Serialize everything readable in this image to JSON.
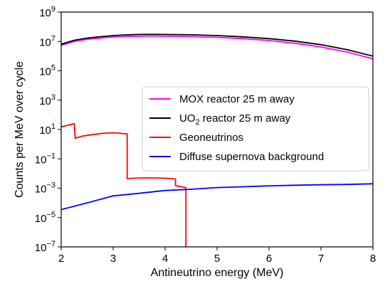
{
  "chart_data": {
    "type": "line",
    "title": "",
    "xlabel": "Antineutrino energy (MeV)",
    "ylabel": "Counts per MeV over cycle",
    "xlim": [
      2,
      8
    ],
    "ylim": [
      1e-07,
      1000000000.0
    ],
    "yscale": "log",
    "grid": false,
    "legend_position": "center-right",
    "x_ticks": [
      {
        "value": 2,
        "label": "2"
      },
      {
        "value": 3,
        "label": "3"
      },
      {
        "value": 4,
        "label": "4"
      },
      {
        "value": 5,
        "label": "5"
      },
      {
        "value": 6,
        "label": "6"
      },
      {
        "value": 7,
        "label": "7"
      },
      {
        "value": 8,
        "label": "8"
      }
    ],
    "y_ticks": [
      {
        "value": 1e-07,
        "base": "10",
        "exp": "−7"
      },
      {
        "value": 1e-05,
        "base": "10",
        "exp": "−5"
      },
      {
        "value": 0.001,
        "base": "10",
        "exp": "−3"
      },
      {
        "value": 0.1,
        "base": "10",
        "exp": "−1"
      },
      {
        "value": 10.0,
        "base": "10",
        "exp": "1"
      },
      {
        "value": 1000.0,
        "base": "10",
        "exp": "3"
      },
      {
        "value": 100000.0,
        "base": "10",
        "exp": "5"
      },
      {
        "value": 10000000.0,
        "base": "10",
        "exp": "7"
      },
      {
        "value": 1000000000.0,
        "base": "10",
        "exp": "9"
      }
    ],
    "series": [
      {
        "name": "MOX reactor 25 m away",
        "color": "#ff00ff",
        "x": [
          2.0,
          2.25,
          2.5,
          2.75,
          3.0,
          3.25,
          3.5,
          3.75,
          4.0,
          4.25,
          4.5,
          5.0,
          5.5,
          6.0,
          6.5,
          7.0,
          7.5,
          8.0
        ],
        "y": [
          5500000.0,
          10000000.0,
          14000000.0,
          17000000.0,
          20000000.0,
          22000000.0,
          23000000.0,
          23500000.0,
          23000000.0,
          22500000.0,
          21500000.0,
          19000000.0,
          15500000.0,
          11500000.0,
          7500000.0,
          4200000.0,
          1900000.0,
          650000.0
        ]
      },
      {
        "name": "UO",
        "name_sub": "2",
        "name_tail": " reactor 25 m away",
        "color": "#000000",
        "x": [
          2.0,
          2.25,
          2.5,
          2.75,
          3.0,
          3.25,
          3.5,
          3.75,
          4.0,
          4.25,
          4.5,
          5.0,
          5.5,
          6.0,
          6.5,
          7.0,
          7.5,
          8.0
        ],
        "y": [
          6500000.0,
          12000000.0,
          17000000.0,
          21000000.0,
          25000000.0,
          28000000.0,
          30000000.0,
          30500000.0,
          30000000.0,
          29500000.0,
          28500000.0,
          25000000.0,
          20500000.0,
          15500000.0,
          10500000.0,
          6000000.0,
          2800000.0,
          1000000.0
        ]
      },
      {
        "name": "Geoneutrinos",
        "color": "#ff0000",
        "x": [
          2.0,
          2.25,
          2.25,
          2.27,
          2.27,
          2.4,
          2.6,
          2.8,
          3.0,
          3.1,
          3.2,
          3.27,
          3.27,
          3.4,
          3.6,
          3.8,
          4.0,
          4.1,
          4.2,
          4.2,
          4.4,
          4.4
        ],
        "y": [
          15,
          25,
          25,
          2.5,
          2.5,
          3.5,
          4.5,
          5.5,
          6.0,
          5.8,
          5.2,
          5.0,
          0.0045,
          0.0048,
          0.005,
          0.005,
          0.0048,
          0.0045,
          0.0042,
          0.0015,
          0.0011,
          1e-07
        ]
      },
      {
        "name": "Diffuse supernova background",
        "color": "#0000ff",
        "x": [
          2.0,
          2.5,
          3.0,
          3.5,
          4.0,
          4.5,
          5.0,
          5.5,
          6.0,
          6.5,
          7.0,
          7.5,
          8.0
        ],
        "y": [
          3.5e-05,
          0.0001,
          0.0003,
          0.00045,
          0.0007,
          0.00085,
          0.0011,
          0.00125,
          0.00145,
          0.0016,
          0.0017,
          0.0018,
          0.002
        ]
      }
    ]
  }
}
